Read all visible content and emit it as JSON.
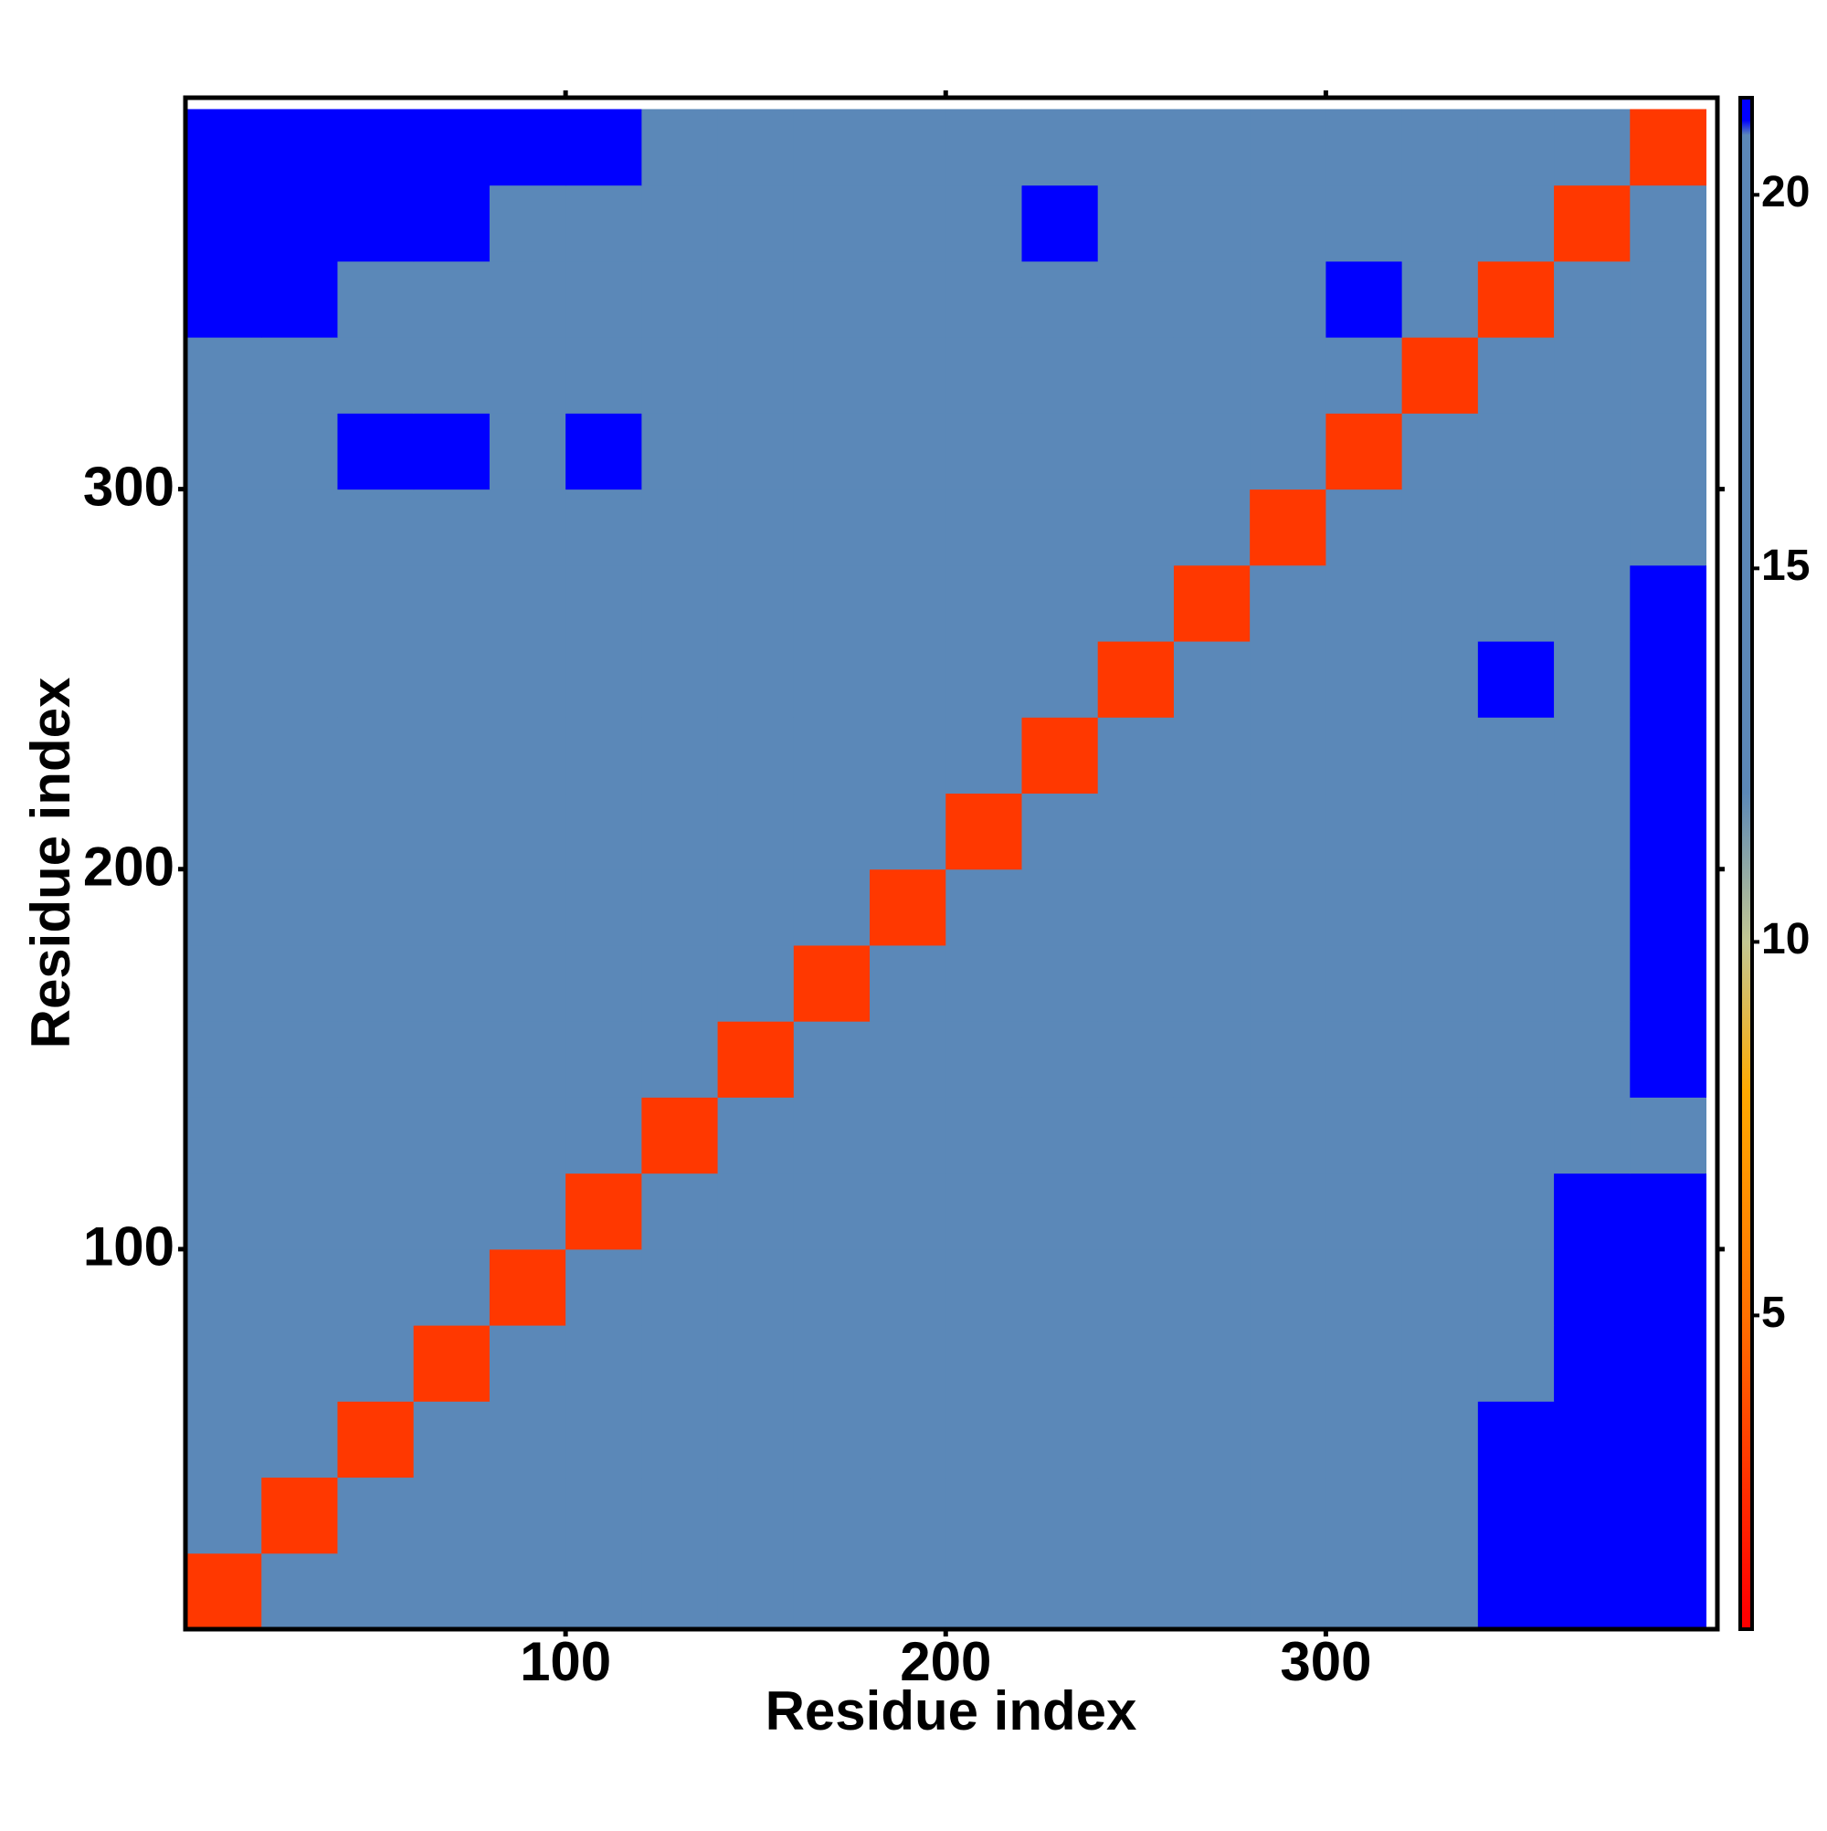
{
  "chart_data": {
    "type": "heatmap",
    "x_label": "Residue index",
    "y_label": "Residue index",
    "xlim": [
      0,
      403
    ],
    "ylim": [
      0,
      403
    ],
    "xticks": [
      100,
      200,
      300
    ],
    "yticks": [
      100,
      200,
      300
    ],
    "x": [
      10,
      30,
      50,
      70,
      90,
      110,
      130,
      150,
      170,
      190,
      210,
      230,
      250,
      270,
      290,
      310,
      330,
      350,
      370,
      390
    ],
    "y": [
      10,
      30,
      50,
      70,
      90,
      110,
      130,
      150,
      170,
      190,
      210,
      230,
      250,
      270,
      290,
      310,
      330,
      350,
      370,
      390
    ],
    "z": [
      [
        3,
        12,
        18,
        18,
        18,
        18,
        17,
        17,
        17,
        17,
        18,
        18,
        18,
        18,
        18,
        19,
        19,
        21,
        21,
        21
      ],
      [
        12,
        3,
        12,
        16,
        17,
        17,
        17,
        17,
        17,
        17,
        17,
        17,
        17,
        17,
        17,
        17,
        17,
        21,
        21,
        21
      ],
      [
        19,
        12,
        3,
        12,
        13,
        17,
        17,
        17,
        17,
        17,
        17,
        17,
        17,
        17,
        17,
        17,
        17,
        21,
        21,
        21
      ],
      [
        19,
        14,
        12,
        3,
        12,
        14,
        17,
        17,
        17,
        17,
        17,
        17,
        17,
        17,
        17,
        17,
        17,
        20,
        21,
        21
      ],
      [
        19,
        14,
        14,
        12,
        3,
        12,
        17,
        17,
        17,
        17,
        17,
        17,
        17,
        17,
        17,
        17,
        17,
        20,
        21,
        21
      ],
      [
        19,
        16,
        14,
        14,
        12,
        3,
        12,
        16,
        17,
        17,
        17,
        17,
        17,
        17,
        17,
        17,
        17,
        17,
        21,
        21
      ],
      [
        19,
        17,
        17,
        17,
        16,
        12,
        3,
        12,
        16,
        17,
        17,
        17,
        17,
        17,
        16,
        17,
        17,
        17,
        19,
        20
      ],
      [
        19,
        14,
        17,
        17,
        17,
        16,
        12,
        3,
        12,
        16,
        17,
        17,
        17,
        17,
        17,
        16,
        17,
        17,
        17,
        21
      ],
      [
        19,
        17,
        17,
        17,
        17,
        17,
        16,
        12,
        3,
        12,
        14,
        13,
        17,
        17,
        17,
        17,
        17,
        17,
        17,
        21
      ],
      [
        19,
        15,
        17,
        17,
        17,
        17,
        17,
        16,
        12,
        3,
        12,
        17,
        17,
        17,
        17,
        17,
        17,
        17,
        17,
        21
      ],
      [
        19,
        17,
        17,
        17,
        17,
        17,
        17,
        13,
        14,
        12,
        3,
        12,
        17,
        16,
        17,
        17,
        14,
        17,
        17,
        21
      ],
      [
        19,
        17,
        17,
        17,
        17,
        17,
        17,
        17,
        13,
        17,
        12,
        3,
        12,
        17,
        15,
        17,
        14,
        17,
        17,
        21
      ],
      [
        19,
        17,
        15,
        15,
        17,
        17,
        14,
        17,
        17,
        17,
        17,
        12,
        3,
        12,
        15,
        17,
        17,
        21,
        17,
        21
      ],
      [
        19,
        17,
        17,
        17,
        17,
        17,
        13,
        17,
        17,
        17,
        17,
        17,
        12,
        3,
        12,
        17,
        17,
        17,
        17,
        21
      ],
      [
        19,
        17,
        17,
        17,
        17,
        17,
        17,
        17,
        17,
        13,
        17,
        14,
        15,
        12,
        3,
        12,
        14,
        17,
        17,
        17
      ],
      [
        19,
        15,
        21,
        21,
        17,
        21,
        14,
        17,
        17,
        17,
        17,
        17,
        17,
        17,
        12,
        3,
        12,
        17,
        17,
        17
      ],
      [
        19,
        17,
        19,
        19,
        19,
        17,
        17,
        17,
        17,
        17,
        17,
        17,
        17,
        14,
        17,
        12,
        3,
        12,
        17,
        17
      ],
      [
        21,
        21,
        19,
        19,
        19,
        17,
        17,
        17,
        17,
        13,
        17,
        17,
        17,
        17,
        17,
        21,
        12,
        3,
        12,
        14
      ],
      [
        21,
        21,
        21,
        21,
        19,
        19,
        17,
        17,
        19,
        17,
        17,
        21,
        17,
        17,
        17,
        17,
        17,
        12,
        3,
        12
      ],
      [
        21,
        21,
        21,
        21,
        21,
        21,
        17,
        17,
        19,
        17,
        17,
        17,
        18,
        17,
        15,
        14,
        14,
        17,
        12,
        3
      ]
    ],
    "colorscale": [
      [
        1,
        "#ff0000"
      ],
      [
        5,
        "#ff7000"
      ],
      [
        8,
        "#ffaa00"
      ],
      [
        10,
        "#c4c893"
      ],
      [
        12,
        "#5b88b8"
      ],
      [
        20.8,
        "#5b88b8"
      ],
      [
        21,
        "#0000ff"
      ]
    ],
    "colorbar": {
      "lim": [
        0.8,
        21.3
      ],
      "ticks": [
        5,
        10,
        15,
        20
      ]
    }
  }
}
